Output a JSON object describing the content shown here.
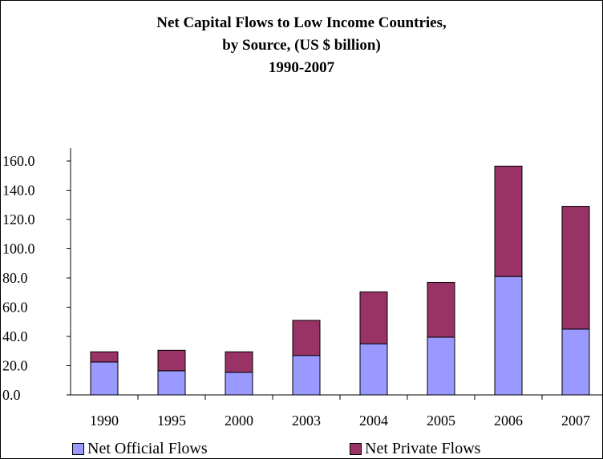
{
  "chart_data": {
    "type": "bar",
    "stacked": true,
    "title_lines": [
      "Net Capital Flows to Low Income Countries,",
      "by Source, (US $ billion)",
      "1990-2007"
    ],
    "categories": [
      "1990",
      "1995",
      "2000",
      "2003",
      "2004",
      "2005",
      "2006",
      "2007"
    ],
    "series": [
      {
        "name": "Net Official Flows",
        "color": "#9999FF",
        "values": [
          22.5,
          16.5,
          15.5,
          27.0,
          35.0,
          39.5,
          81.0,
          45.0
        ]
      },
      {
        "name": "Net Private Flows",
        "color": "#993366",
        "values": [
          7.0,
          14.0,
          14.0,
          24.0,
          35.5,
          37.5,
          75.5,
          84.0
        ]
      }
    ],
    "ylim": [
      0,
      160
    ],
    "yticks": [
      "0.0",
      "20.0",
      "40.0",
      "60.0",
      "80.0",
      "100.0",
      "120.0",
      "140.0",
      "160.0"
    ],
    "grid": false,
    "legend_position": "bottom"
  }
}
